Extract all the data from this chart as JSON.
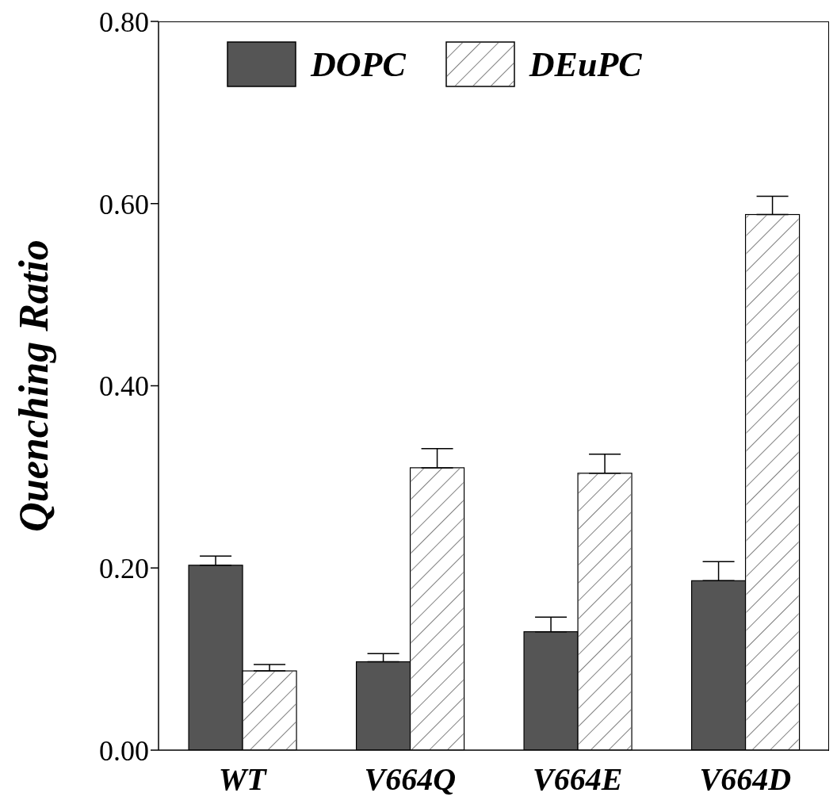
{
  "chart_data": {
    "type": "bar",
    "ylabel": "Quenching Ratio",
    "categories": [
      "WT",
      "V664Q",
      "V664E",
      "V664D"
    ],
    "series": [
      {
        "name": "DOPC",
        "color": "#555555",
        "values": [
          0.203,
          0.097,
          0.13,
          0.186
        ],
        "errors": [
          [
            0.203,
            0.213
          ],
          [
            0.097,
            0.106
          ],
          [
            0.13,
            0.146
          ],
          [
            0.186,
            0.207
          ]
        ]
      },
      {
        "name": "DEuPC",
        "color": "#ffffff",
        "values": [
          0.087,
          0.31,
          0.304,
          0.588
        ],
        "errors": [
          [
            0.087,
            0.094
          ],
          [
            0.31,
            0.331
          ],
          [
            0.304,
            0.325
          ],
          [
            0.588,
            0.608
          ]
        ]
      }
    ],
    "ylim": [
      0,
      0.8
    ],
    "yticks": [
      {
        "value": 0,
        "label": "0.00"
      },
      {
        "value": 0.2,
        "label": "0.20"
      },
      {
        "value": 0.4,
        "label": "0.40"
      },
      {
        "value": 0.6,
        "label": "0.60"
      },
      {
        "value": 0.8,
        "label": "0.80"
      }
    ],
    "grid": false,
    "legend": "top left"
  }
}
